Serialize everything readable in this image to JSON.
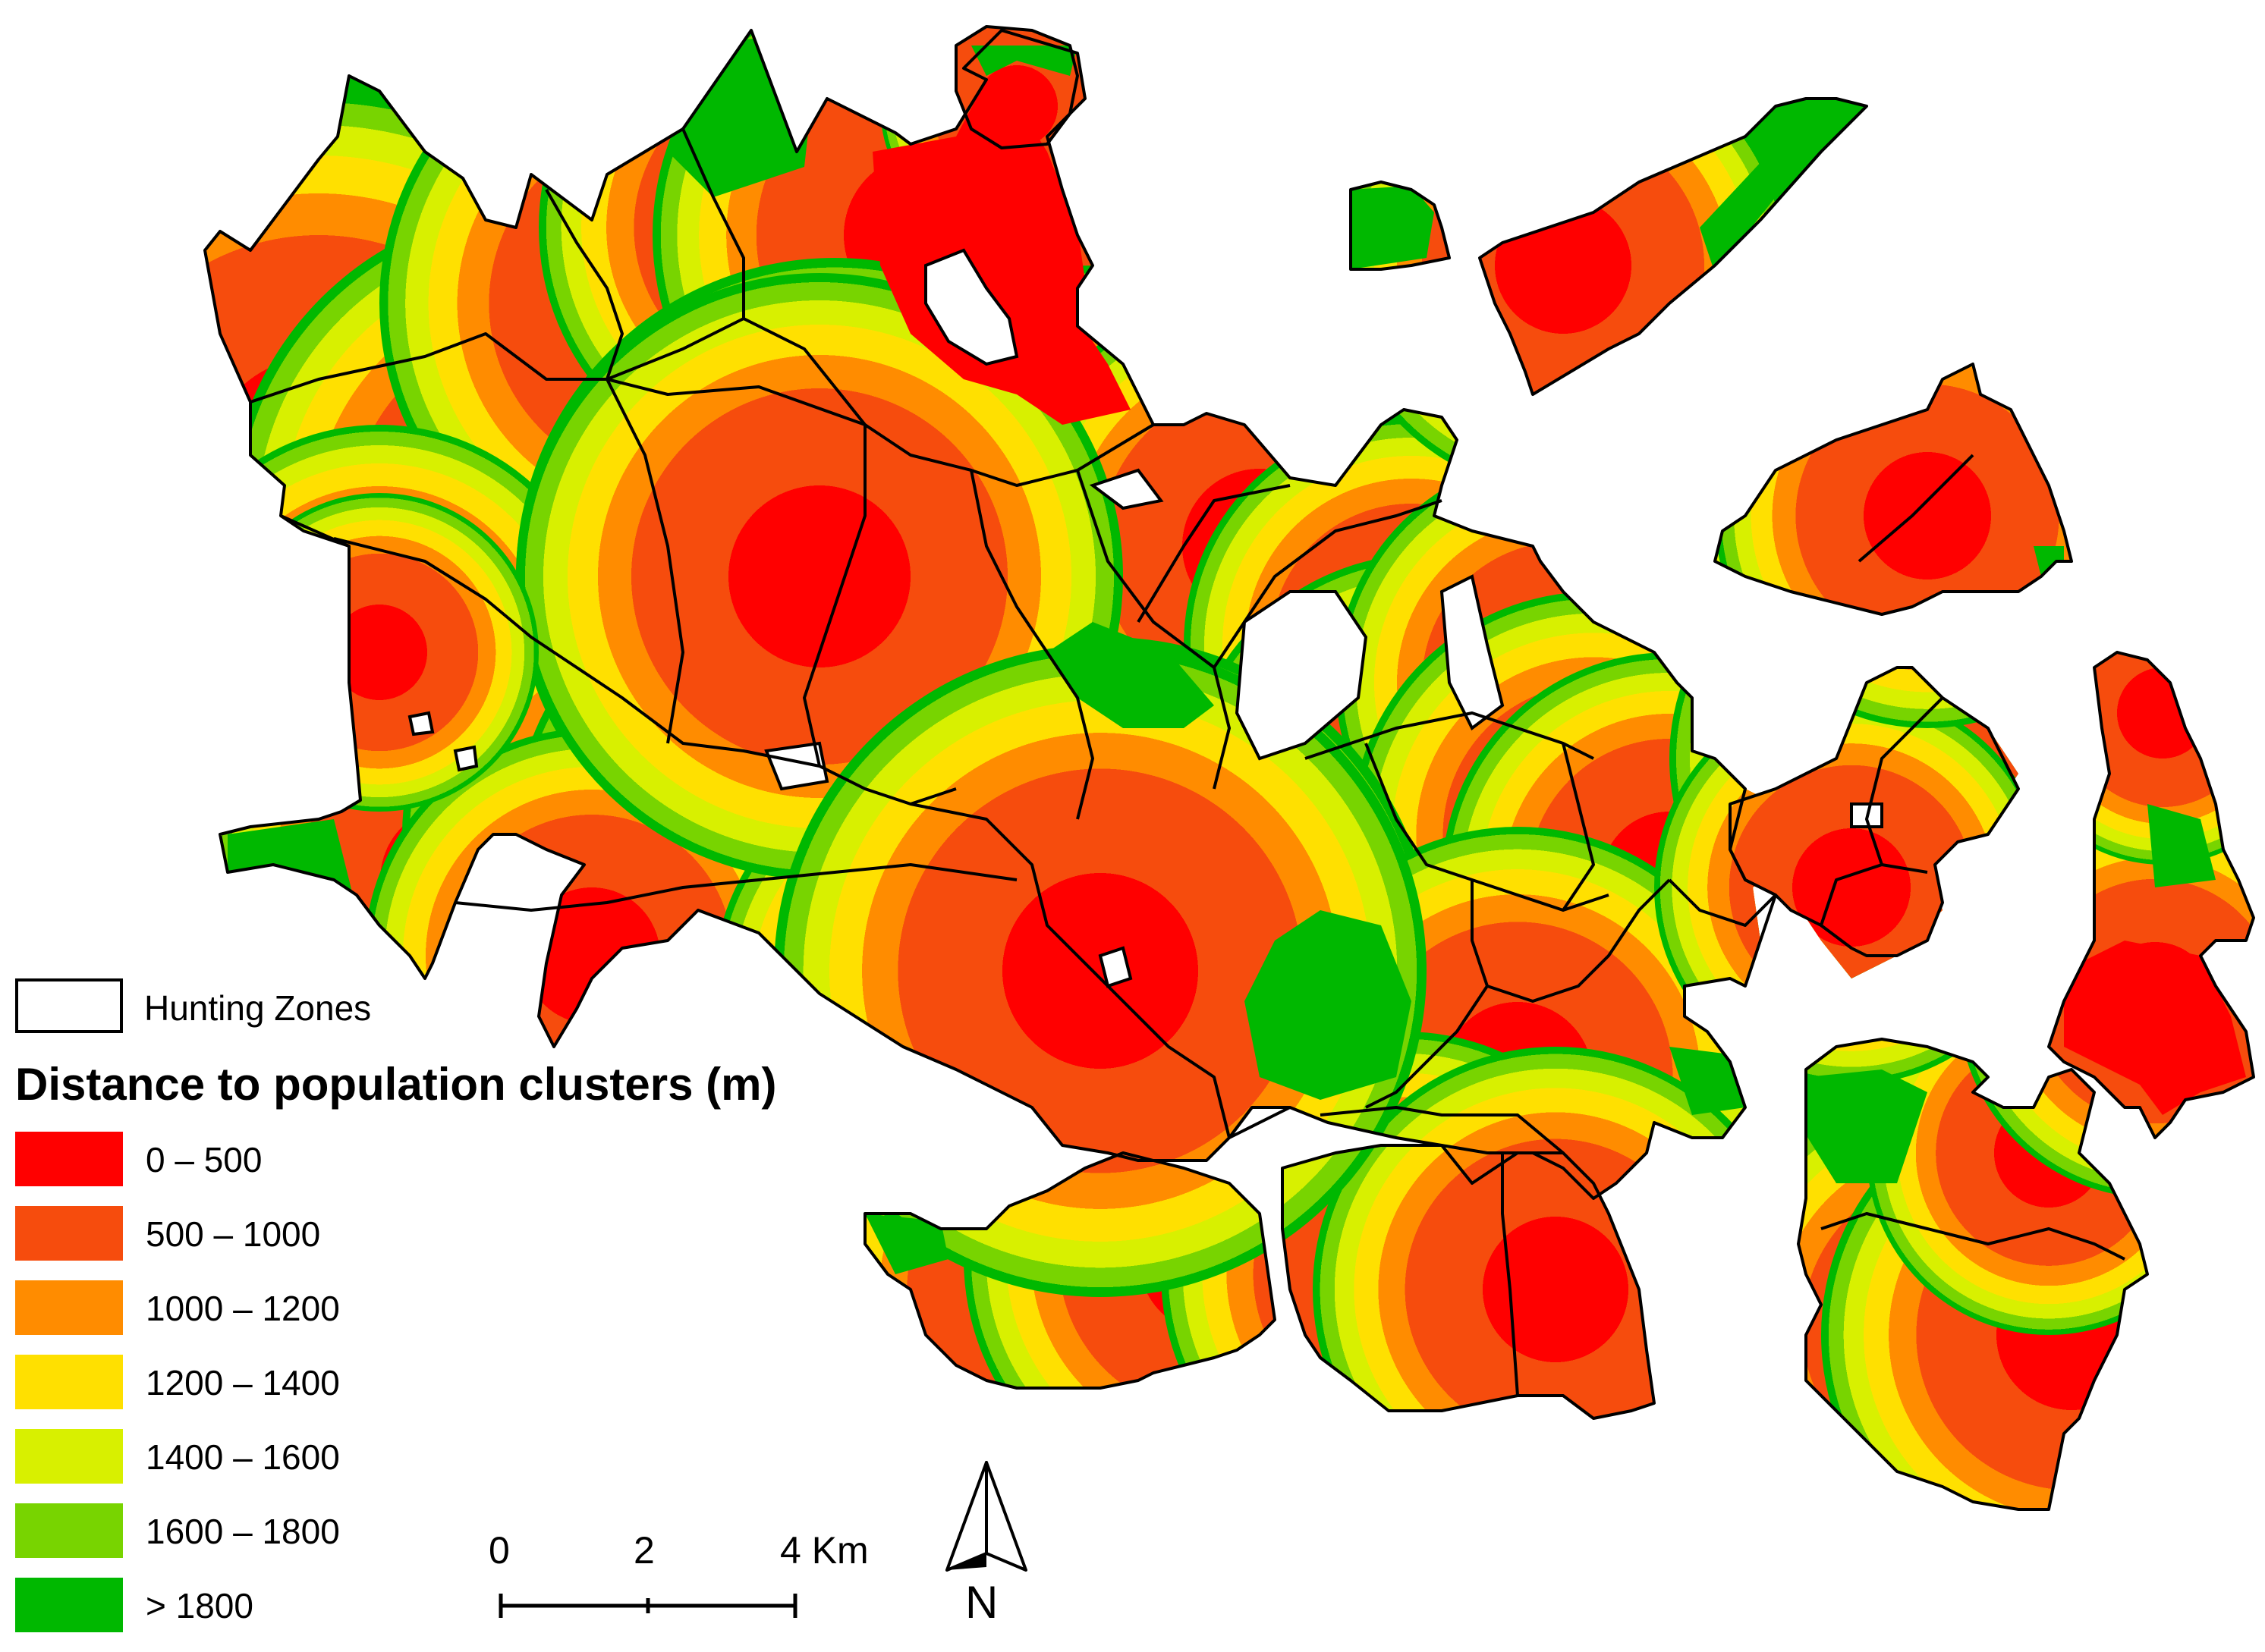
{
  "map": {
    "colors": {
      "class_0_500": "#ff0000",
      "class_500_1000": "#f64c0d",
      "class_1000_1200": "#ff8c00",
      "class_1200_1400": "#ffe000",
      "class_1400_1600": "#d8f000",
      "class_1600_1800": "#78d400",
      "class_gt_1800": "#00b800",
      "boundary": "#000000",
      "background": "#ffffff"
    }
  },
  "legend": {
    "zones_label": "Hunting Zones",
    "title": "Distance to population clusters (m)",
    "classes": [
      {
        "label": "0 – 500",
        "color": "#ff0000"
      },
      {
        "label": "500 – 1000",
        "color": "#f64c0d"
      },
      {
        "label": "1000 – 1200",
        "color": "#ff8c00"
      },
      {
        "label": "1200 – 1400",
        "color": "#ffe000"
      },
      {
        "label": "1400 – 1600",
        "color": "#d8f000"
      },
      {
        "label": "1600 – 1800",
        "color": "#78d400"
      },
      {
        "label": "> 1800",
        "color": "#00b800"
      }
    ]
  },
  "scale_bar": {
    "ticks": [
      "0",
      "2",
      "4 Km"
    ]
  },
  "north_arrow": {
    "label": "N"
  }
}
